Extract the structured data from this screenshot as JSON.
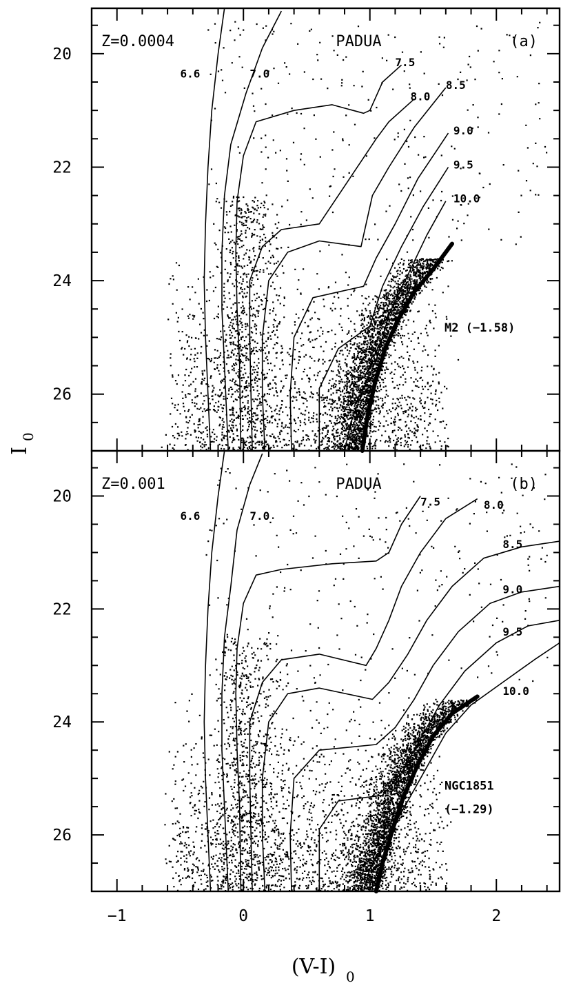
{
  "chart_data": {
    "type": "scatter",
    "xlabel": "(V-I)",
    "xlabel_sub": "0",
    "ylabel": "I",
    "ylabel_sub": "0",
    "xlim": [
      -1.2,
      2.5
    ],
    "ylim": [
      27,
      19.2
    ],
    "x_ticks": [
      -1,
      0,
      1,
      2
    ],
    "x_tick_labels": [
      "−1",
      "0",
      "1",
      "2"
    ],
    "y_ticks": [
      20,
      22,
      24,
      26
    ],
    "y_tick_labels": [
      "20",
      "22",
      "24",
      "26"
    ],
    "grid": false,
    "legend": "none",
    "colors": {
      "ink": "#000000",
      "background": "#ffffff"
    },
    "panels": [
      {
        "id": "a",
        "metallicity": "Z=0.0004",
        "model": "PADUA",
        "panel_label": "(a)",
        "cluster_label": "M2 (−1.58)",
        "cluster_label_lines": [
          "M2 (−1.58)"
        ],
        "isochrone_labels": [
          {
            "text": "6.6",
            "x": -0.5,
            "y": 20.35
          },
          {
            "text": "7.0",
            "x": 0.05,
            "y": 20.35
          },
          {
            "text": "7.5",
            "x": 1.2,
            "y": 20.15
          },
          {
            "text": "8.0",
            "x": 1.32,
            "y": 20.75
          },
          {
            "text": "8.5",
            "x": 1.6,
            "y": 20.55
          },
          {
            "text": "9.0",
            "x": 1.66,
            "y": 21.35
          },
          {
            "text": "9.5",
            "x": 1.66,
            "y": 21.95
          },
          {
            "text": "10.0",
            "x": 1.66,
            "y": 22.55
          }
        ],
        "isochrones": [
          {
            "name": "6.6",
            "points": [
              [
                -0.15,
                19.2
              ],
              [
                -0.2,
                20.0
              ],
              [
                -0.25,
                21.0
              ],
              [
                -0.28,
                22.0
              ],
              [
                -0.3,
                23.0
              ],
              [
                -0.31,
                24.0
              ],
              [
                -0.3,
                25.0
              ],
              [
                -0.28,
                26.0
              ],
              [
                -0.26,
                27.0
              ]
            ]
          },
          {
            "name": "7.0",
            "points": [
              [
                0.3,
                19.25
              ],
              [
                0.15,
                19.9
              ],
              [
                0.02,
                20.7
              ],
              [
                -0.1,
                21.6
              ],
              [
                -0.15,
                22.5
              ],
              [
                -0.17,
                23.5
              ],
              [
                -0.17,
                24.5
              ],
              [
                -0.15,
                25.5
              ],
              [
                -0.13,
                26.5
              ],
              [
                -0.12,
                27.0
              ]
            ]
          },
          {
            "name": "7.5",
            "points": [
              [
                1.25,
                20.2
              ],
              [
                1.1,
                20.5
              ],
              [
                1.0,
                21.0
              ],
              [
                0.95,
                21.05
              ],
              [
                0.7,
                20.9
              ],
              [
                0.4,
                21.0
              ],
              [
                0.1,
                21.2
              ],
              [
                0.0,
                21.8
              ],
              [
                -0.05,
                22.6
              ],
              [
                -0.06,
                23.5
              ],
              [
                -0.05,
                24.5
              ],
              [
                -0.03,
                25.5
              ],
              [
                -0.02,
                27.0
              ]
            ]
          },
          {
            "name": "8.0",
            "points": [
              [
                1.35,
                20.8
              ],
              [
                1.15,
                21.2
              ],
              [
                1.05,
                21.5
              ],
              [
                0.99,
                21.7
              ],
              [
                0.6,
                23.0
              ],
              [
                0.3,
                23.1
              ],
              [
                0.15,
                23.4
              ],
              [
                0.05,
                24.0
              ],
              [
                0.05,
                25.0
              ],
              [
                0.06,
                26.0
              ],
              [
                0.07,
                27.0
              ]
            ]
          },
          {
            "name": "8.5",
            "points": [
              [
                1.6,
                20.6
              ],
              [
                1.35,
                21.3
              ],
              [
                1.15,
                22.0
              ],
              [
                1.02,
                22.5
              ],
              [
                0.93,
                23.4
              ],
              [
                0.6,
                23.3
              ],
              [
                0.35,
                23.5
              ],
              [
                0.2,
                24.0
              ],
              [
                0.15,
                25.0
              ],
              [
                0.15,
                26.0
              ],
              [
                0.17,
                27.0
              ]
            ]
          },
          {
            "name": "9.0",
            "points": [
              [
                1.62,
                21.4
              ],
              [
                1.38,
                22.2
              ],
              [
                1.2,
                23.0
              ],
              [
                1.05,
                23.6
              ],
              [
                0.95,
                24.1
              ],
              [
                0.55,
                24.3
              ],
              [
                0.4,
                25.0
              ],
              [
                0.37,
                26.0
              ],
              [
                0.38,
                27.0
              ]
            ]
          },
          {
            "name": "9.5",
            "points": [
              [
                1.62,
                22.0
              ],
              [
                1.42,
                22.7
              ],
              [
                1.25,
                23.4
              ],
              [
                1.1,
                24.1
              ],
              [
                1.0,
                24.8
              ],
              [
                0.75,
                25.2
              ],
              [
                0.6,
                25.9
              ],
              [
                0.6,
                27.0
              ]
            ]
          },
          {
            "name": "10.0",
            "points": [
              [
                1.6,
                22.6
              ],
              [
                1.45,
                23.2
              ],
              [
                1.3,
                23.9
              ],
              [
                1.15,
                24.6
              ],
              [
                1.05,
                25.4
              ],
              [
                0.95,
                25.9
              ],
              [
                0.85,
                26.5
              ],
              [
                0.8,
                27.0
              ]
            ]
          }
        ],
        "fiducial": {
          "name": "M2 (−1.58)",
          "points": [
            [
              1.65,
              23.35
            ],
            [
              1.5,
              23.8
            ],
            [
              1.35,
              24.2
            ],
            [
              1.22,
              24.7
            ],
            [
              1.12,
              25.2
            ],
            [
              1.04,
              25.8
            ],
            [
              0.98,
              26.4
            ],
            [
              0.94,
              27.0
            ]
          ]
        }
      },
      {
        "id": "b",
        "metallicity": "Z=0.001",
        "model": "PADUA",
        "panel_label": "(b)",
        "cluster_label": "NGC1851 (−1.29)",
        "cluster_label_lines": [
          "NGC1851",
          "(−1.29)"
        ],
        "isochrone_labels": [
          {
            "text": "6.6",
            "x": -0.5,
            "y": 20.35
          },
          {
            "text": "7.0",
            "x": 0.05,
            "y": 20.35
          },
          {
            "text": "7.5",
            "x": 1.4,
            "y": 20.1
          },
          {
            "text": "8.0",
            "x": 1.9,
            "y": 20.15
          },
          {
            "text": "8.5",
            "x": 2.05,
            "y": 20.85
          },
          {
            "text": "9.0",
            "x": 2.05,
            "y": 21.65
          },
          {
            "text": "9.5",
            "x": 2.05,
            "y": 22.4
          },
          {
            "text": "10.0",
            "x": 2.05,
            "y": 23.45
          }
        ],
        "isochrones": [
          {
            "name": "6.6",
            "points": [
              [
                -0.15,
                19.2
              ],
              [
                -0.2,
                20.0
              ],
              [
                -0.25,
                21.0
              ],
              [
                -0.28,
                22.0
              ],
              [
                -0.3,
                23.0
              ],
              [
                -0.31,
                24.0
              ],
              [
                -0.3,
                25.0
              ],
              [
                -0.28,
                26.0
              ],
              [
                -0.26,
                27.0
              ]
            ]
          },
          {
            "name": "7.0",
            "points": [
              [
                0.15,
                19.25
              ],
              [
                0.05,
                19.8
              ],
              [
                -0.05,
                20.6
              ],
              [
                -0.1,
                21.6
              ],
              [
                -0.15,
                22.5
              ],
              [
                -0.17,
                23.5
              ],
              [
                -0.17,
                24.5
              ],
              [
                -0.15,
                25.5
              ],
              [
                -0.13,
                26.5
              ],
              [
                -0.12,
                27.0
              ]
            ]
          },
          {
            "name": "7.5",
            "points": [
              [
                1.4,
                20.0
              ],
              [
                1.25,
                20.5
              ],
              [
                1.15,
                21.0
              ],
              [
                1.05,
                21.15
              ],
              [
                0.7,
                21.2
              ],
              [
                0.3,
                21.3
              ],
              [
                0.1,
                21.4
              ],
              [
                0.0,
                21.9
              ],
              [
                -0.05,
                22.7
              ],
              [
                -0.06,
                23.5
              ],
              [
                -0.05,
                24.5
              ],
              [
                -0.03,
                25.5
              ],
              [
                -0.02,
                27.0
              ]
            ]
          },
          {
            "name": "8.0",
            "points": [
              [
                1.85,
                20.05
              ],
              [
                1.6,
                20.4
              ],
              [
                1.4,
                21.0
              ],
              [
                1.25,
                21.6
              ],
              [
                1.15,
                22.2
              ],
              [
                1.05,
                22.7
              ],
              [
                0.97,
                23.0
              ],
              [
                0.6,
                22.8
              ],
              [
                0.3,
                22.9
              ],
              [
                0.15,
                23.3
              ],
              [
                0.05,
                24.0
              ],
              [
                0.05,
                25.0
              ],
              [
                0.06,
                26.0
              ],
              [
                0.07,
                27.0
              ]
            ]
          },
          {
            "name": "8.5",
            "points": [
              [
                2.5,
                20.8
              ],
              [
                2.2,
                20.9
              ],
              [
                1.9,
                21.1
              ],
              [
                1.65,
                21.6
              ],
              [
                1.45,
                22.2
              ],
              [
                1.3,
                22.8
              ],
              [
                1.15,
                23.3
              ],
              [
                1.02,
                23.6
              ],
              [
                0.6,
                23.4
              ],
              [
                0.35,
                23.5
              ],
              [
                0.2,
                24.0
              ],
              [
                0.15,
                25.0
              ],
              [
                0.15,
                26.0
              ],
              [
                0.17,
                27.0
              ]
            ]
          },
          {
            "name": "9.0",
            "points": [
              [
                2.5,
                21.6
              ],
              [
                2.2,
                21.7
              ],
              [
                1.95,
                21.9
              ],
              [
                1.7,
                22.4
              ],
              [
                1.5,
                23.0
              ],
              [
                1.35,
                23.6
              ],
              [
                1.2,
                24.1
              ],
              [
                1.05,
                24.4
              ],
              [
                0.6,
                24.5
              ],
              [
                0.4,
                25.0
              ],
              [
                0.37,
                26.0
              ],
              [
                0.38,
                27.0
              ]
            ]
          },
          {
            "name": "9.5",
            "points": [
              [
                2.5,
                22.2
              ],
              [
                2.25,
                22.3
              ],
              [
                2.0,
                22.6
              ],
              [
                1.75,
                23.1
              ],
              [
                1.55,
                23.7
              ],
              [
                1.4,
                24.3
              ],
              [
                1.25,
                24.9
              ],
              [
                1.1,
                25.3
              ],
              [
                0.75,
                25.4
              ],
              [
                0.6,
                25.9
              ],
              [
                0.6,
                27.0
              ]
            ]
          },
          {
            "name": "10.0",
            "points": [
              [
                2.5,
                22.6
              ],
              [
                2.3,
                22.9
              ],
              [
                2.05,
                23.3
              ],
              [
                1.8,
                23.7
              ],
              [
                1.6,
                24.2
              ],
              [
                1.45,
                24.8
              ],
              [
                1.3,
                25.4
              ],
              [
                1.15,
                26.0
              ],
              [
                1.0,
                26.6
              ],
              [
                0.95,
                27.0
              ]
            ]
          }
        ],
        "fiducial": {
          "name": "NGC1851 (−1.29)",
          "points": [
            [
              1.85,
              23.55
            ],
            [
              1.65,
              23.85
            ],
            [
              1.5,
              24.25
            ],
            [
              1.38,
              24.75
            ],
            [
              1.27,
              25.3
            ],
            [
              1.18,
              25.9
            ],
            [
              1.1,
              26.5
            ],
            [
              1.05,
              27.0
            ]
          ]
        }
      }
    ]
  }
}
